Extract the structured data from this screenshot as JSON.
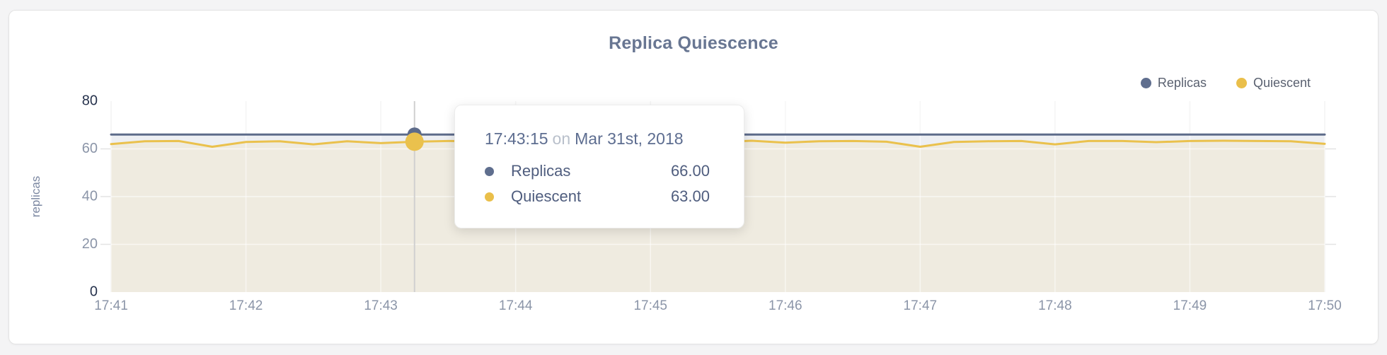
{
  "page": {
    "title": "Replica Quiescence"
  },
  "legend": [
    {
      "label": "Replicas",
      "color": "#5f6e8e"
    },
    {
      "label": "Quiescent",
      "color": "#eabf4a"
    }
  ],
  "tooltip": {
    "time": "17:43:15",
    "connector": "on",
    "date": "Mar 31st, 2018",
    "rows": [
      {
        "label": "Replicas",
        "value": "66.00",
        "color": "#5f6e8e"
      },
      {
        "label": "Quiescent",
        "value": "63.00",
        "color": "#eabf4a"
      }
    ]
  },
  "y_axis": {
    "title": "replicas",
    "ticks": [
      0,
      20,
      40,
      60,
      80
    ],
    "endpoint_color": "#27334d",
    "tick_color": "#8b95a8"
  },
  "x_axis": {
    "ticks": [
      "17:41",
      "17:42",
      "17:43",
      "17:44",
      "17:45",
      "17:46",
      "17:47",
      "17:48",
      "17:49",
      "17:50"
    ],
    "tick_color": "#8b95a8"
  },
  "chart_data": {
    "type": "line",
    "title": "Replica Quiescence",
    "xlabel": "",
    "ylabel": "replicas",
    "ylim": [
      0,
      80
    ],
    "grid": true,
    "legend_position": "top-right",
    "x_times": [
      "17:41:00",
      "17:41:15",
      "17:41:30",
      "17:41:45",
      "17:42:00",
      "17:42:15",
      "17:42:30",
      "17:42:45",
      "17:43:00",
      "17:43:15",
      "17:43:30",
      "17:43:45",
      "17:44:00",
      "17:44:15",
      "17:44:30",
      "17:44:45",
      "17:45:00",
      "17:45:15",
      "17:45:30",
      "17:45:45",
      "17:46:00",
      "17:46:15",
      "17:46:30",
      "17:46:45",
      "17:47:00",
      "17:47:15",
      "17:47:30",
      "17:47:45",
      "17:48:00",
      "17:48:15",
      "17:48:30",
      "17:48:45",
      "17:49:00",
      "17:49:15",
      "17:49:30",
      "17:49:45",
      "17:50:00"
    ],
    "series": [
      {
        "name": "Replicas",
        "color": "#5d6b8a",
        "fill": "#edeff3",
        "values": [
          66,
          66,
          66,
          66,
          66,
          66,
          66,
          66,
          66,
          66,
          66,
          66,
          66,
          66,
          66,
          66,
          66,
          66,
          66,
          66,
          66,
          66,
          66,
          66,
          66,
          66,
          66,
          66,
          66,
          66,
          66,
          66,
          66,
          66,
          66,
          66,
          66
        ]
      },
      {
        "name": "Quiescent",
        "color": "#eac14d",
        "fill": "#efebe0",
        "values": [
          62.0,
          63.2,
          63.3,
          60.9,
          62.9,
          63.2,
          61.9,
          63.2,
          62.4,
          63.0,
          63.3,
          63.2,
          62.5,
          63.3,
          63.1,
          61.2,
          63.0,
          63.3,
          62.8,
          63.4,
          62.6,
          63.2,
          63.3,
          63.0,
          60.9,
          62.9,
          63.2,
          63.3,
          61.9,
          63.3,
          63.3,
          62.8,
          63.3,
          63.4,
          63.3,
          63.2,
          62.1
        ]
      }
    ],
    "highlight": {
      "index": 9,
      "time": "17:43:15",
      "date": "Mar 31st, 2018",
      "replicas": 66.0,
      "quiescent": 63.0,
      "crosshair_color": "#d0d0d0"
    }
  }
}
